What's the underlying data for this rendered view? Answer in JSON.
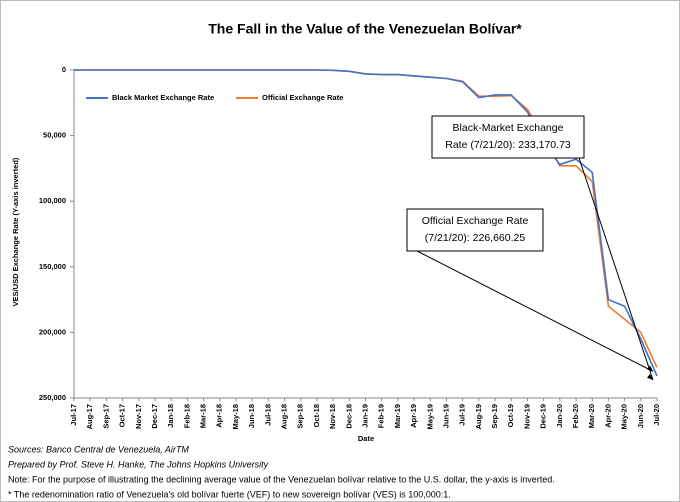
{
  "chart_data": {
    "type": "line",
    "title": "The Fall in the Value of the Venezuelan Bolívar*",
    "y_label": "VES/USD Exchange Rate (Y-axis inverted)",
    "x_label": "Date",
    "categories": [
      "Jul-17",
      "Aug-17",
      "Sep-17",
      "Oct-17",
      "Nov-17",
      "Dec-17",
      "Jan-18",
      "Feb-18",
      "Mar-18",
      "Apr-18",
      "May-18",
      "Jun-18",
      "Jul-18",
      "Aug-18",
      "Sep-18",
      "Oct-18",
      "Nov-18",
      "Dec-18",
      "Jan-19",
      "Feb-19",
      "Mar-19",
      "Apr-19",
      "May-19",
      "Jun-19",
      "Jul-19",
      "Aug-19",
      "Sep-19",
      "Oct-19",
      "Nov-19",
      "Dec-19",
      "Jan-20",
      "Feb-20",
      "Mar-20",
      "Apr-20",
      "May-20",
      "Jun-20",
      "Jul-20"
    ],
    "series": [
      {
        "name": "Black Market Exchange Rate",
        "color": "#4472c4",
        "values": [
          0,
          0,
          0,
          0,
          0,
          0,
          0,
          0,
          0,
          0,
          0,
          0,
          0,
          0,
          0,
          0,
          200,
          1000,
          3000,
          3500,
          3500,
          4500,
          5500,
          6500,
          9000,
          21000,
          19000,
          19000,
          32000,
          55000,
          72000,
          68000,
          78000,
          175000,
          180000,
          205000,
          233170.73
        ]
      },
      {
        "name": "Official Exchange Rate",
        "color": "#ed7d31",
        "values": [
          0,
          0,
          0,
          0,
          0,
          0,
          0,
          0,
          0,
          0,
          0,
          0,
          0,
          0,
          0,
          0,
          200,
          1000,
          3000,
          3500,
          3500,
          4500,
          5500,
          6500,
          8500,
          20000,
          20000,
          19500,
          30000,
          50000,
          73000,
          73000,
          85000,
          180000,
          190000,
          200000,
          226660.25
        ]
      }
    ],
    "ylim": [
      0,
      250000
    ],
    "y_inverted": true,
    "yticks": [
      0,
      {
        "value": 50000,
        "label": "50,000"
      },
      {
        "value": 100000,
        "label": "100,000"
      },
      {
        "value": 150000,
        "label": "150,000"
      },
      {
        "value": 200000,
        "label": "200,000"
      },
      {
        "value": 250000,
        "label": "250,000"
      }
    ],
    "legend": "upper left",
    "annotations": [
      {
        "series": 0,
        "lines": [
          "Black-Market Exchange",
          "Rate (7/21/20): 233,170.73"
        ]
      },
      {
        "series": 1,
        "lines": [
          "Official Exchange Rate",
          "(7/21/20): 226,660.25"
        ]
      }
    ],
    "notes": [
      "Sources: Banco Central de Venezuela, AirTM",
      "Prepared by Prof. Steve H. Hanke, The Johns Hopkins University",
      "Note: For the purpose of illustrating the declining average value of the Venezuelan bolívar relative to the U.S. dollar, the y-axis is inverted.",
      "* The redenomination ratio of Venezuela's old bolívar fuerte (VEF) to new sovereign bolívar (VES) is 100,000:1."
    ]
  }
}
